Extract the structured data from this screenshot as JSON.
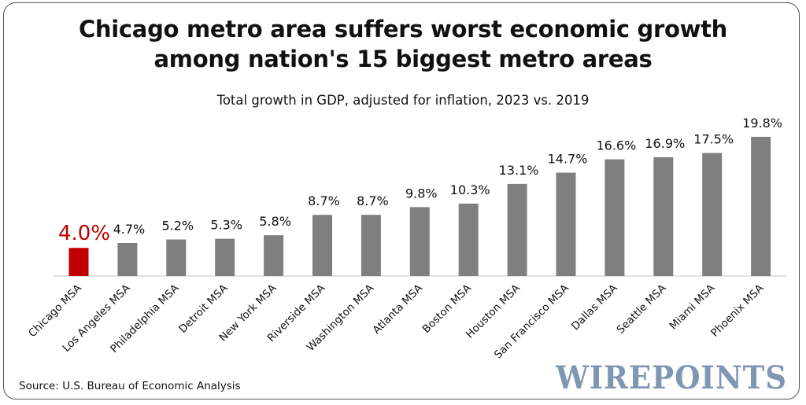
{
  "chart_data": {
    "type": "bar",
    "title": "Chicago metro area suffers worst economic growth among nation's 15 biggest metro areas",
    "title_lines": [
      "Chicago metro area suffers worst economic growth",
      "among nation's 15 biggest metro areas"
    ],
    "subtitle": "Total growth in GDP, adjusted for inflation, 2023 vs. 2019",
    "categories": [
      "Chicago MSA",
      "Los Angeles MSA",
      "Philadelphia MSA",
      "Detroit MSA",
      "New York MSA",
      "Riverside MSA",
      "Washington MSA",
      "Atlanta MSA",
      "Boston MSA",
      "Houston MSA",
      "San Francisco MSA",
      "Dallas MSA",
      "Seattle MSA",
      "Miami MSA",
      "Phoenix MSA"
    ],
    "values": [
      4.0,
      4.7,
      5.2,
      5.3,
      5.8,
      8.7,
      8.7,
      9.8,
      10.3,
      13.1,
      14.7,
      16.6,
      16.9,
      17.5,
      19.8
    ],
    "data_labels": [
      "4.0%",
      "4.7%",
      "5.2%",
      "5.3%",
      "5.8%",
      "8.7%",
      "8.7%",
      "9.8%",
      "10.3%",
      "13.1%",
      "14.7%",
      "16.6%",
      "16.9%",
      "17.5%",
      "19.8%"
    ],
    "highlight_index": 0,
    "xlabel": "",
    "ylabel": "",
    "ylim": [
      0,
      20
    ],
    "grid": false,
    "colors": {
      "bar": "#7f7f7f",
      "highlight": "#c00000",
      "axis": "#d9d9d9"
    }
  },
  "source": "Source: U.S. Bureau of Economic Analysis",
  "logo": "WIREPOINTS"
}
